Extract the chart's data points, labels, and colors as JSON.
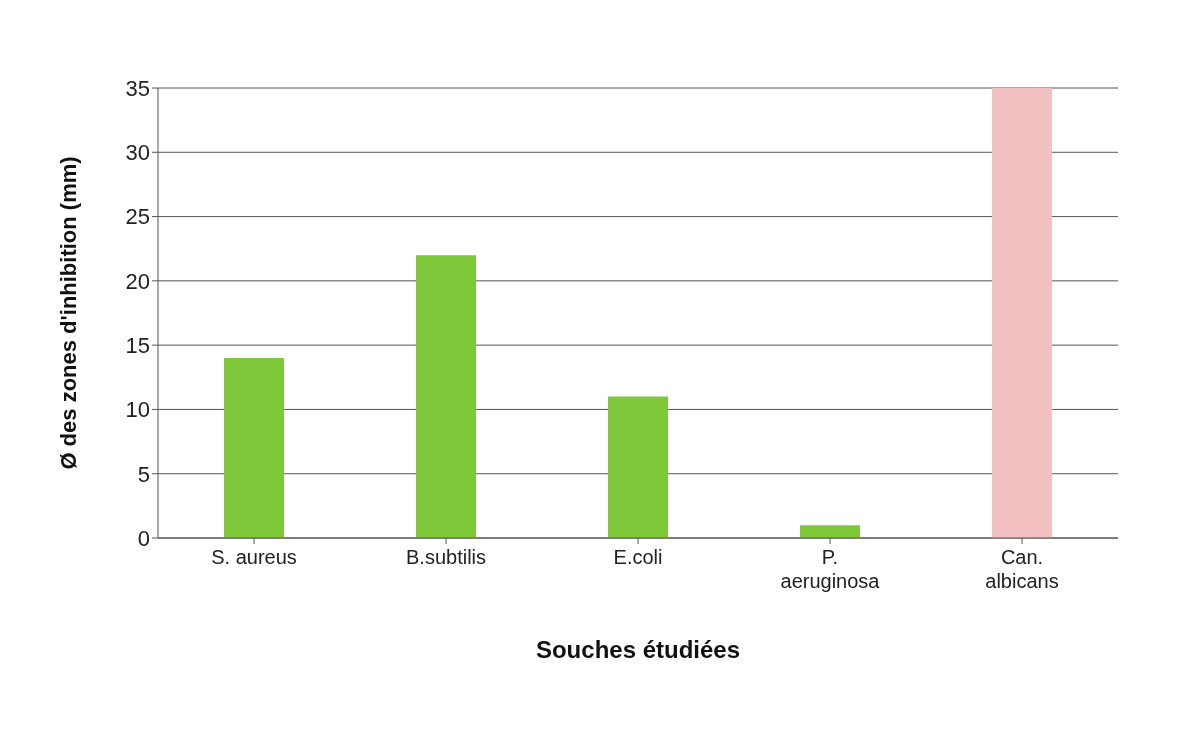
{
  "chart_data": {
    "type": "bar",
    "xlabel": "Souches étudiées",
    "ylabel": "Ø  des zones d'inhibition (mm)",
    "categories": [
      "S. aureus",
      "B.subtilis",
      "E.coli",
      "P. aeruginosa",
      "Can. albicans"
    ],
    "values": [
      14,
      22,
      11,
      1,
      35
    ],
    "colors": [
      "#7ec83a",
      "#7ec83a",
      "#7ec83a",
      "#7ec83a",
      "#f2c0c0"
    ],
    "ylim": [
      0,
      35
    ],
    "yticks": [
      0,
      5,
      10,
      15,
      20,
      25,
      30,
      35
    ],
    "grid": "y",
    "legend": false
  }
}
